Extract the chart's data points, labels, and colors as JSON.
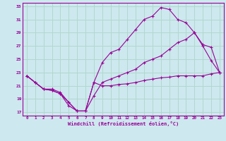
{
  "bg_color": "#cde8ee",
  "grid_color": "#b0d8cc",
  "line_color": "#990099",
  "xmin": -0.5,
  "xmax": 23.5,
  "ymin": 16.5,
  "ymax": 33.5,
  "yticks": [
    17,
    19,
    21,
    23,
    25,
    27,
    29,
    31,
    33
  ],
  "xticks": [
    0,
    1,
    2,
    3,
    4,
    5,
    6,
    7,
    8,
    9,
    10,
    11,
    12,
    13,
    14,
    15,
    16,
    17,
    18,
    19,
    20,
    21,
    22,
    23
  ],
  "xlabel": "Windchill (Refroidissement éolien,°C)",
  "line1_x": [
    0,
    1,
    2,
    3,
    4,
    5,
    6,
    7,
    8,
    9,
    10,
    11,
    12,
    13,
    14,
    15,
    16,
    17,
    18,
    19,
    20,
    21,
    22,
    23
  ],
  "line1_y": [
    22.5,
    21.5,
    20.5,
    20.5,
    20.0,
    18.5,
    17.2,
    17.2,
    21.5,
    21.0,
    21.0,
    21.2,
    21.3,
    21.5,
    21.8,
    22.0,
    22.2,
    22.3,
    22.5,
    22.5,
    22.5,
    22.5,
    22.8,
    23.0
  ],
  "line2_x": [
    0,
    1,
    2,
    3,
    4,
    5,
    6,
    7,
    8,
    9,
    10,
    11,
    12,
    13,
    14,
    15,
    16,
    17,
    18,
    19,
    20,
    21,
    22,
    23
  ],
  "line2_y": [
    22.5,
    21.5,
    20.5,
    20.3,
    19.8,
    18.0,
    17.2,
    17.2,
    21.5,
    24.5,
    26.0,
    26.5,
    28.0,
    29.5,
    31.0,
    31.5,
    32.8,
    32.5,
    31.0,
    30.5,
    29.0,
    27.0,
    24.8,
    23.0
  ],
  "line3_x": [
    0,
    1,
    2,
    3,
    4,
    5,
    6,
    7,
    8,
    9,
    10,
    11,
    12,
    13,
    14,
    15,
    16,
    17,
    18,
    19,
    20,
    21,
    22,
    23
  ],
  "line3_y": [
    22.5,
    21.5,
    20.5,
    20.3,
    19.8,
    18.5,
    17.2,
    17.2,
    19.5,
    21.5,
    22.0,
    22.5,
    23.0,
    23.5,
    24.5,
    25.0,
    25.5,
    26.5,
    27.5,
    28.0,
    29.0,
    27.2,
    26.8,
    23.0
  ]
}
